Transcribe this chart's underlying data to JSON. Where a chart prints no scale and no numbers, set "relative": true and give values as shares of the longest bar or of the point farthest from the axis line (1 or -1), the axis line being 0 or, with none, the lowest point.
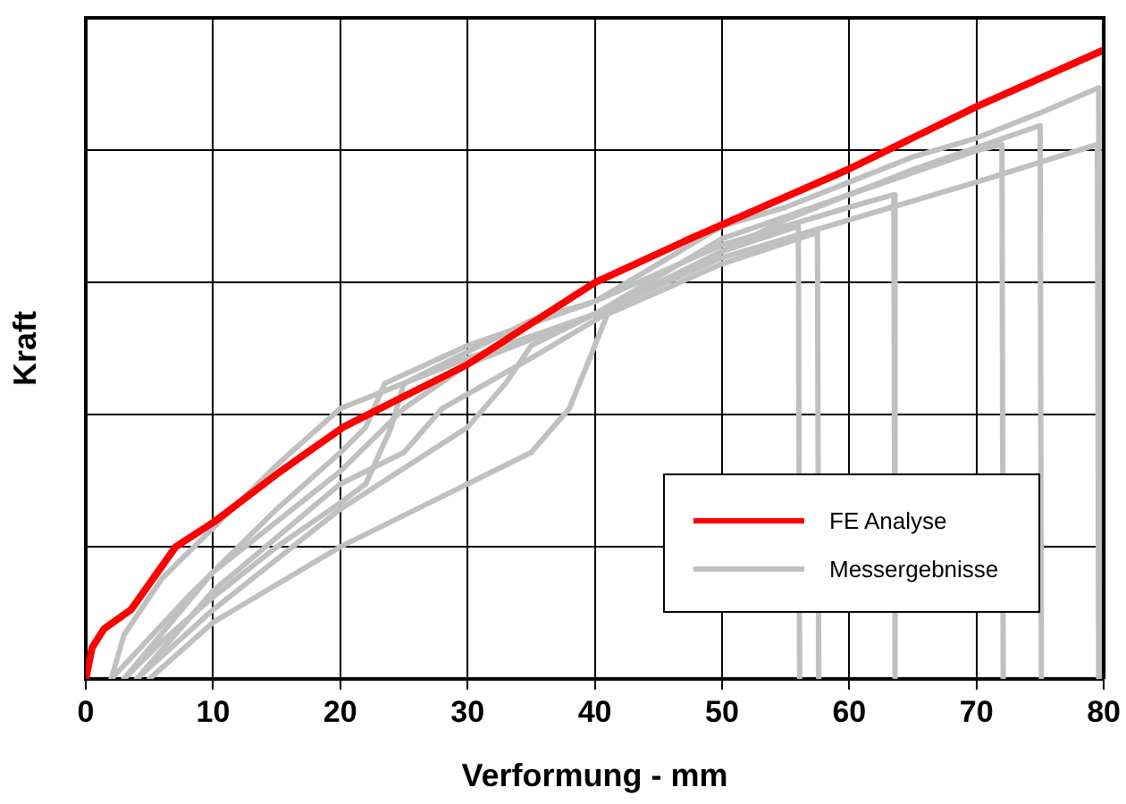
{
  "chart_data": {
    "type": "line",
    "xlabel": "Verformung - mm",
    "ylabel": "Kraft",
    "relative": true,
    "xlim": [
      0,
      80
    ],
    "xticks": [
      0,
      10,
      20,
      30,
      40,
      50,
      60,
      70,
      80
    ],
    "grid": true,
    "legend": "bottom right",
    "marker": "none",
    "line_style": "solid",
    "series": [
      {
        "name": "FE Analyse",
        "color": "#ff0000",
        "x": [
          0,
          0.5,
          1.45,
          3.55,
          7.06,
          10.1,
          15.3,
          20.2,
          24.1,
          30,
          40,
          47.5,
          59.9,
          70,
          80
        ],
        "values": [
          0,
          0.05,
          0.08,
          0.11,
          0.21,
          0.25,
          0.33,
          0.4,
          0.44,
          0.5,
          0.63,
          0.7,
          0.81,
          0.91,
          1
        ]
      },
      {
        "name": "Messergebnisse",
        "color": "#c0c0c0",
        "x": [
          2,
          3,
          6,
          10,
          15,
          20,
          25,
          30,
          35,
          40,
          45,
          50,
          55,
          60,
          65,
          70,
          75,
          79.6,
          79.7
        ],
        "values": [
          0,
          0.07,
          0.16,
          0.24,
          0.34,
          0.43,
          0.47,
          0.52,
          0.57,
          0.6,
          0.66,
          0.72,
          0.75,
          0.79,
          0.83,
          0.86,
          0.9,
          0.94,
          0
        ]
      },
      {
        "color": "#c0c0c0",
        "x": [
          3,
          6,
          10,
          15,
          20,
          22,
          24,
          25,
          30,
          40,
          50,
          60,
          70,
          79.5,
          79.6
        ],
        "values": [
          0,
          0.06,
          0.13,
          0.21,
          0.28,
          0.31,
          0.4,
          0.47,
          0.51,
          0.58,
          0.67,
          0.73,
          0.79,
          0.85,
          0
        ]
      },
      {
        "color": "#c0c0c0",
        "x": [
          5,
          10,
          20,
          30,
          35,
          38,
          40,
          41,
          50,
          57.5,
          57.6
        ],
        "values": [
          0,
          0.09,
          0.21,
          0.31,
          0.36,
          0.43,
          0.53,
          0.58,
          0.66,
          0.71,
          0
        ]
      },
      {
        "color": "#c0c0c0",
        "x": [
          4,
          10,
          20,
          30,
          33,
          35,
          40,
          50,
          56,
          56.1
        ],
        "values": [
          0,
          0.11,
          0.27,
          0.4,
          0.47,
          0.53,
          0.58,
          0.68,
          0.72,
          0
        ]
      },
      {
        "color": "#c0c0c0",
        "x": [
          2,
          8,
          15,
          20,
          22,
          23.5,
          30,
          40,
          50,
          60,
          63.5,
          63.6
        ],
        "values": [
          0,
          0.13,
          0.27,
          0.36,
          0.4,
          0.47,
          0.53,
          0.6,
          0.69,
          0.75,
          0.77,
          0
        ]
      },
      {
        "color": "#c0c0c0",
        "x": [
          3,
          10,
          20,
          25,
          30,
          40,
          50,
          60,
          70,
          72,
          72.1
        ],
        "values": [
          0,
          0.17,
          0.33,
          0.43,
          0.5,
          0.58,
          0.7,
          0.77,
          0.84,
          0.85,
          0
        ]
      },
      {
        "color": "#c0c0c0",
        "x": [
          4,
          10,
          20,
          25,
          28,
          35,
          45,
          55,
          65,
          75,
          75.1
        ],
        "values": [
          0,
          0.14,
          0.31,
          0.36,
          0.43,
          0.51,
          0.63,
          0.73,
          0.81,
          0.88,
          0
        ]
      }
    ]
  }
}
